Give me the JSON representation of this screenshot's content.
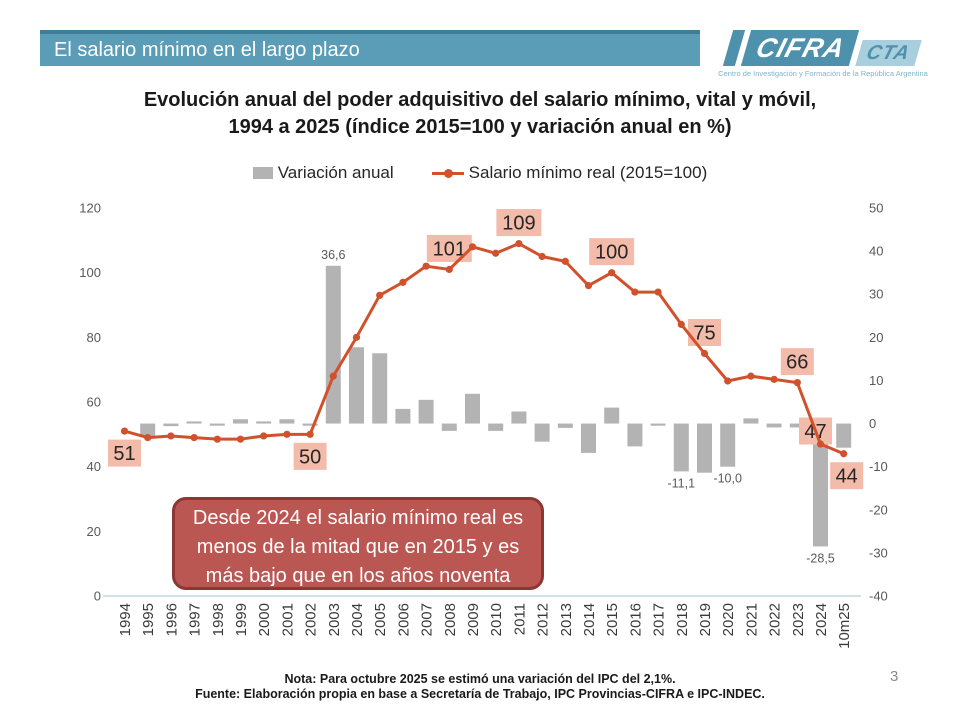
{
  "header": {
    "title": "El salario mínimo en el largo plazo",
    "bar_color": "#5b9db6",
    "page_number": "3",
    "logo": {
      "name": "CIFRA",
      "sub": "CTA",
      "tagline": "Centro de Investigación y Formación de la República Argentina",
      "blue": "#4e91ac",
      "light_blue": "#a9cede"
    }
  },
  "chart_data": {
    "type": "combo_bar_line",
    "title": "Evolución anual del poder adquisitivo del salario mínimo, vital y móvil, 1994 a 2025 (índice 2015=100 y variación anual en %)",
    "title_lines": [
      "Evolución anual del poder adquisitivo del salario mínimo, vital y móvil,",
      "1994 a 2025 (índice 2015=100 y variación anual en %)"
    ],
    "legend_position": "top",
    "grid": "off",
    "axis_color": "#b9cfda",
    "label_bg": "#f3bba9",
    "left_axis": {
      "min": 0,
      "max": 120,
      "step": 20
    },
    "right_axis": {
      "min": -40,
      "max": 50,
      "step": 10
    },
    "categories": [
      "1994",
      "1995",
      "1996",
      "1997",
      "1998",
      "1999",
      "2000",
      "2001",
      "2002",
      "2003",
      "2004",
      "2005",
      "2006",
      "2007",
      "2008",
      "2009",
      "2010",
      "2011",
      "2012",
      "2013",
      "2014",
      "2015",
      "2016",
      "2017",
      "2018",
      "2019",
      "2020",
      "2021",
      "2022",
      "2023",
      "2024",
      "10m25"
    ],
    "series": [
      {
        "name": "Variación anual",
        "type": "bar",
        "axis": "right",
        "color": "#b3b3b3",
        "values": [
          null,
          -3,
          -0.6,
          0.5,
          -0.5,
          1,
          0.5,
          1,
          -0.5,
          36.6,
          17.7,
          16.3,
          3.4,
          5.5,
          -1.7,
          6.9,
          -1.7,
          2.8,
          -4.2,
          -1,
          -6.8,
          3.7,
          -5.3,
          -0.5,
          -11.1,
          -11.4,
          -10,
          1.2,
          -0.9,
          -0.9,
          -28.5,
          -5.6
        ],
        "point_labels": [
          {
            "category": "2003",
            "text": "36,6"
          },
          {
            "category": "2018",
            "text": "-11,1"
          },
          {
            "category": "2020",
            "text": "-10,0"
          },
          {
            "category": "2024",
            "text": "-28,5"
          }
        ]
      },
      {
        "name": "Salario mínimo real (2015=100)",
        "type": "line",
        "axis": "left",
        "color": "#d0512c",
        "values": [
          51,
          49,
          49.5,
          49,
          48.5,
          48.5,
          49.5,
          50,
          50,
          68,
          80,
          93,
          97,
          102,
          101,
          108,
          106,
          109,
          105,
          103.5,
          96,
          100,
          94,
          94,
          84,
          75,
          66.5,
          68,
          67,
          66,
          47,
          44
        ],
        "point_labels": [
          {
            "category": "1994",
            "text": "51",
            "side": "below"
          },
          {
            "category": "2002",
            "text": "50",
            "side": "below"
          },
          {
            "category": "2008",
            "text": "101",
            "side": "above"
          },
          {
            "category": "2011",
            "text": "109",
            "side": "above"
          },
          {
            "category": "2015",
            "text": "100",
            "side": "above"
          },
          {
            "category": "2019",
            "text": "75",
            "side": "above"
          },
          {
            "category": "2023",
            "text": "66",
            "side": "above"
          },
          {
            "category": "2024",
            "text": "47",
            "side": "above",
            "dx": -5,
            "dy": 8
          },
          {
            "category": "10m25",
            "text": "44",
            "side": "below",
            "dx": 3
          }
        ]
      }
    ]
  },
  "callout": {
    "bg": "#bb5753",
    "border": "#8c3732",
    "lines": [
      "Desde 2024 el salario mínimo real es",
      "menos de la mitad que en 2015 y es",
      "más bajo que en los años noventa"
    ]
  },
  "notes": {
    "nota": "Nota: Para octubre 2025 se estimó una variación del IPC del 2,1%.",
    "fuente": "Fuente: Elaboración propia en base a Secretaría de Trabajo, IPC Provincias-CIFRA e IPC-INDEC."
  }
}
